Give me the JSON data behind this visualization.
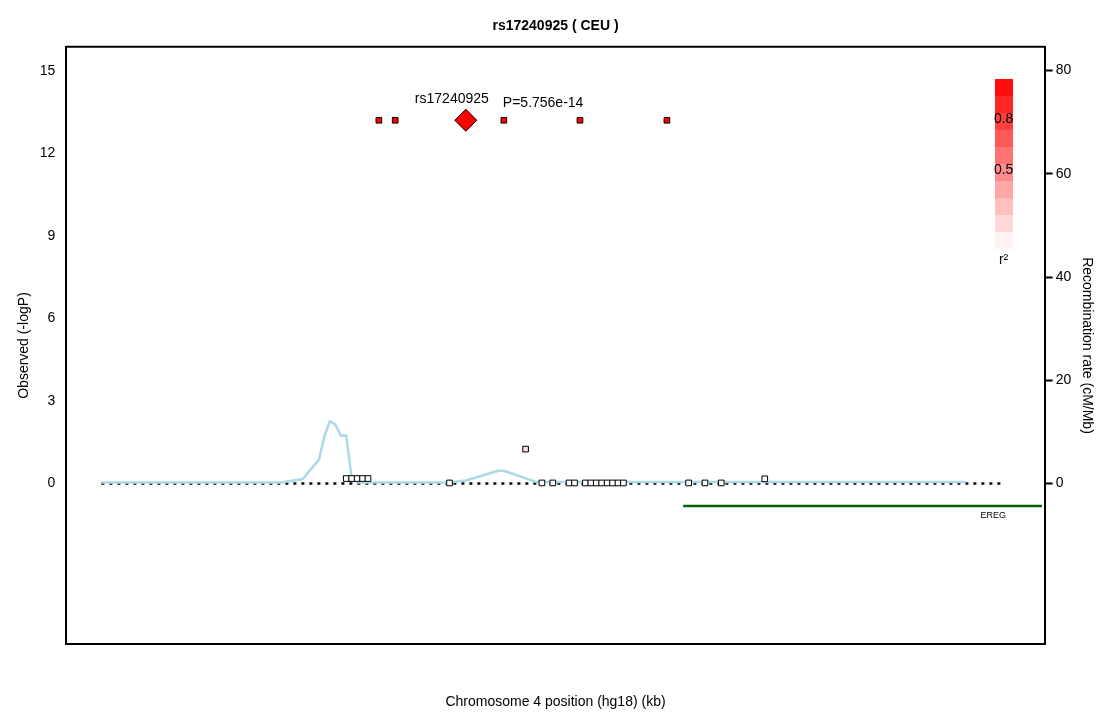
{
  "chart_data": {
    "type": "scatter",
    "title": "rs17240925 ( CEU )",
    "xlabel": "Chromosome 4 position (hg18) (kb)",
    "ylabel": "Observed (-logP)",
    "y2label": "Recombination rate (cM/Mb)",
    "categories": [
      null,
      null,
      null,
      null,
      null,
      null,
      null,
      null,
      null,
      null,
      null,
      null,
      null,
      null,
      null,
      null,
      null,
      null,
      null,
      null,
      null,
      null,
      null,
      null,
      null,
      null,
      null,
      null,
      null,
      null,
      null,
      null,
      null,
      null,
      null,
      null,
      null,
      null,
      null,
      null,
      null,
      null,
      null,
      null,
      null,
      null,
      null,
      null,
      null,
      null,
      null,
      null,
      null,
      null,
      null,
      null,
      null,
      null,
      null,
      null,
      null,
      null,
      null,
      null,
      null,
      null,
      null,
      null,
      null,
      null,
      null,
      null,
      null,
      null,
      null,
      null,
      null,
      null,
      null,
      null,
      null,
      null,
      null,
      null,
      null,
      null,
      null,
      null,
      null,
      null,
      null,
      null,
      null,
      null,
      null,
      null,
      null,
      null,
      null,
      null,
      null,
      null,
      null,
      null,
      null,
      null,
      null,
      null,
      null,
      null,
      null,
      null,
      null,
      null,
      null,
      null,
      null,
      null,
      null,
      null,
      null,
      null,
      null,
      null,
      null,
      null,
      null,
      null,
      null,
      null,
      null,
      null,
      null,
      null,
      null,
      null,
      null,
      null,
      null,
      null,
      null,
      null,
      null,
      null,
      null,
      null,
      null,
      null,
      null,
      null,
      null,
      null,
      null,
      null,
      null,
      null,
      null,
      null,
      null,
      null,
      null,
      null,
      null,
      null,
      null,
      null,
      null,
      null,
      null,
      null,
      null,
      null,
      null,
      null,
      null,
      null,
      null,
      null,
      null,
      null
    ],
    "ylim": [
      -5.84,
      15.87
    ],
    "yticks": [
      0,
      3,
      6,
      9,
      12,
      15
    ],
    "y2lim": [
      -31.1,
      84.6
    ],
    "y2ticks": [
      0,
      20,
      40,
      60,
      80
    ],
    "legend": false,
    "ref_lines": [
      {
        "axis": "y",
        "value": 0,
        "color": "#000000",
        "line_style": "dotted"
      }
    ],
    "annotations": [
      "P=5.756e-14",
      "0.8",
      "0.5",
      "r²"
    ],
    "series": [
      {
        "type": "scatter",
        "marker": "square",
        "values": [
          null,
          null,
          null,
          null,
          null,
          null,
          null,
          null,
          null,
          null,
          null,
          null,
          null,
          null,
          null,
          null,
          null,
          null,
          null,
          null,
          null,
          null,
          null,
          null,
          null,
          null,
          null,
          null,
          null,
          null,
          null,
          null,
          null,
          null,
          null,
          null,
          null,
          null,
          null,
          null,
          null,
          null,
          null,
          null,
          null,
          null,
          null,
          null,
          null,
          null,
          null,
          0.18,
          0.18,
          0.18,
          0.18,
          0.18,
          null,
          13.2,
          null,
          null,
          13.2,
          null,
          null,
          null,
          null,
          null,
          null,
          null,
          null,
          null,
          0.02,
          null,
          null,
          null,
          null,
          null,
          null,
          null,
          null,
          null,
          13.2,
          null,
          null,
          null,
          1.25,
          null,
          null,
          0.02,
          null,
          0.02,
          null,
          null,
          0.02,
          0.02,
          13.2,
          0.02,
          0.02,
          0.02,
          0.02,
          0.02,
          0.02,
          0.02,
          0.02,
          null,
          null,
          null,
          null,
          null,
          null,
          null,
          13.2,
          null,
          null,
          null,
          0.02,
          null,
          null,
          0.02,
          null,
          null,
          0.02,
          null,
          null,
          null,
          null,
          null,
          null,
          null,
          0.17,
          null,
          null,
          null,
          null,
          null,
          null,
          null,
          null,
          null,
          null,
          null,
          null,
          null,
          null,
          null,
          null,
          null,
          null,
          null,
          null,
          null,
          null,
          null,
          null,
          null,
          null,
          null,
          null,
          null,
          null,
          null,
          null,
          null,
          null,
          null,
          null,
          null,
          null,
          null,
          null,
          null,
          null,
          null,
          null,
          null,
          null,
          null,
          null,
          null,
          null,
          null
        ],
        "colors": [
          null,
          null,
          null,
          null,
          null,
          null,
          null,
          null,
          null,
          null,
          null,
          null,
          null,
          null,
          null,
          null,
          null,
          null,
          null,
          null,
          null,
          null,
          null,
          null,
          null,
          null,
          null,
          null,
          null,
          null,
          null,
          null,
          null,
          null,
          null,
          null,
          null,
          null,
          null,
          null,
          null,
          null,
          null,
          null,
          null,
          null,
          null,
          null,
          null,
          null,
          null,
          "#ffffff",
          "#ffffff",
          "#ffffff",
          "#ffffff",
          "#ffffff",
          null,
          "#ff0000",
          null,
          null,
          "#ff0000",
          null,
          null,
          null,
          null,
          null,
          null,
          null,
          null,
          null,
          "#ffffff",
          null,
          null,
          null,
          null,
          null,
          null,
          null,
          null,
          null,
          "#ff0000",
          null,
          null,
          null,
          "#ffd9d9",
          null,
          null,
          "#ffffff",
          null,
          "#ffffff",
          null,
          null,
          "#ffffff",
          "#ffffff",
          "#ff0000",
          "#ffffff",
          "#ffffff",
          "#ffffff",
          "#ffffff",
          "#ffffff",
          "#ffffff",
          "#ffffff",
          "#ffffff",
          null,
          null,
          null,
          null,
          null,
          null,
          null,
          "#ff0000",
          null,
          null,
          null,
          "#ffffff",
          null,
          null,
          "#ffffff",
          null,
          null,
          "#ffffff",
          null,
          null,
          null,
          null,
          null,
          null,
          null,
          "#ffffff",
          null,
          null,
          null,
          null,
          null,
          null,
          null,
          null,
          null,
          null,
          null,
          null,
          null,
          null,
          null,
          null,
          null,
          null,
          null,
          null,
          null,
          null,
          null,
          null,
          null,
          null,
          null,
          null,
          null,
          null,
          null,
          null,
          null,
          null,
          null,
          null,
          null,
          null,
          null,
          null,
          null,
          null,
          null,
          null,
          null,
          null,
          null,
          null,
          null,
          null,
          null
        ]
      },
      {
        "type": "scatter",
        "marker": "diamond",
        "name": "rs17240925",
        "color": "#ff0000",
        "values": [
          null,
          null,
          null,
          null,
          null,
          null,
          null,
          null,
          null,
          null,
          null,
          null,
          null,
          null,
          null,
          null,
          null,
          null,
          null,
          null,
          null,
          null,
          null,
          null,
          null,
          null,
          null,
          null,
          null,
          null,
          null,
          null,
          null,
          null,
          null,
          null,
          null,
          null,
          null,
          null,
          null,
          null,
          null,
          null,
          null,
          null,
          null,
          null,
          null,
          null,
          null,
          null,
          null,
          null,
          null,
          null,
          null,
          null,
          null,
          null,
          null,
          null,
          null,
          null,
          null,
          null,
          null,
          null,
          null,
          null,
          null,
          null,
          null,
          13.2,
          null,
          null,
          null,
          null,
          null,
          null,
          null,
          null,
          null,
          null,
          null,
          null,
          null,
          null,
          null,
          null,
          null,
          null,
          null,
          null,
          null,
          null,
          null,
          null,
          null,
          null,
          null,
          null,
          null,
          null,
          null,
          null,
          null,
          null,
          null,
          null,
          null,
          null,
          null,
          null,
          null,
          null,
          null,
          null,
          null,
          null,
          null,
          null,
          null,
          null,
          null,
          null,
          null,
          null,
          null,
          null,
          null,
          null,
          null,
          null,
          null,
          null,
          null,
          null,
          null,
          null,
          null,
          null,
          null,
          null,
          null,
          null,
          null,
          null,
          null,
          null,
          null,
          null,
          null,
          null,
          null,
          null,
          null,
          null,
          null,
          null,
          null,
          null,
          null,
          null,
          null,
          null,
          null,
          null,
          null,
          null,
          null,
          null,
          null,
          null,
          null,
          null,
          null,
          null,
          null,
          null
        ]
      },
      {
        "type": "line",
        "axis": "y2",
        "color": "#add8e6",
        "values": [
          null,
          null,
          null,
          null,
          null,
          null,
          0.2,
          null,
          null,
          null,
          null,
          null,
          null,
          null,
          null,
          null,
          null,
          null,
          null,
          null,
          null,
          null,
          null,
          null,
          null,
          null,
          null,
          null,
          null,
          null,
          null,
          null,
          null,
          null,
          null,
          null,
          null,
          null,
          null,
          0.2,
          null,
          null,
          null,
          0.9,
          null,
          null,
          4.7,
          9.3,
          12.1,
          11.4,
          9.3,
          9.3,
          1,
          0.2,
          null,
          null,
          null,
          null,
          null,
          null,
          null,
          null,
          null,
          null,
          null,
          null,
          null,
          null,
          null,
          null,
          0.2,
          null,
          null,
          0.6,
          null,
          null,
          null,
          null,
          null,
          2.5,
          2.5,
          null,
          null,
          null,
          null,
          null,
          0.3,
          null,
          null,
          null,
          null,
          null,
          null,
          null,
          null,
          null,
          null,
          null,
          null,
          null,
          null,
          null,
          null,
          null,
          null,
          null,
          null,
          null,
          null,
          null,
          null,
          null,
          null,
          null,
          null,
          null,
          null,
          null,
          null,
          null,
          null,
          null,
          null,
          null,
          null,
          null,
          null,
          null,
          null,
          null,
          null,
          null,
          null,
          null,
          null,
          null,
          null,
          null,
          null,
          null,
          null,
          null,
          null,
          null,
          null,
          null,
          null,
          null,
          null,
          null,
          null,
          null,
          null,
          null,
          null,
          null,
          null,
          null,
          null,
          null,
          null,
          null,
          null,
          null,
          null,
          0.3,
          null,
          null,
          null,
          null,
          null,
          null,
          null,
          null,
          null,
          null,
          null,
          null,
          null,
          null
        ]
      },
      {
        "type": "line",
        "name": "EREG",
        "color": "#006400",
        "values": [
          null,
          null,
          null,
          null,
          null,
          null,
          null,
          null,
          null,
          null,
          null,
          null,
          null,
          null,
          null,
          null,
          null,
          null,
          null,
          null,
          null,
          null,
          null,
          null,
          null,
          null,
          null,
          null,
          null,
          null,
          null,
          null,
          null,
          null,
          null,
          null,
          null,
          null,
          null,
          null,
          null,
          null,
          null,
          null,
          null,
          null,
          null,
          null,
          null,
          null,
          null,
          null,
          null,
          null,
          null,
          null,
          null,
          null,
          null,
          null,
          null,
          null,
          null,
          null,
          null,
          null,
          null,
          null,
          null,
          null,
          null,
          null,
          null,
          null,
          null,
          null,
          null,
          null,
          null,
          null,
          null,
          null,
          null,
          null,
          null,
          null,
          null,
          null,
          null,
          null,
          null,
          null,
          null,
          null,
          null,
          null,
          null,
          null,
          null,
          null,
          null,
          null,
          null,
          null,
          null,
          null,
          null,
          null,
          null,
          null,
          null,
          null,
          null,
          -0.82,
          null,
          null,
          null,
          null,
          null,
          null,
          null,
          null,
          null,
          null,
          null,
          null,
          null,
          null,
          null,
          null,
          null,
          null,
          null,
          null,
          null,
          null,
          null,
          null,
          null,
          null,
          null,
          null,
          null,
          null,
          null,
          null,
          null,
          null,
          null,
          null,
          null,
          null,
          null,
          null,
          null,
          null,
          null,
          null,
          null,
          null,
          null,
          null,
          null,
          null,
          null,
          null,
          null,
          null,
          null,
          null,
          null,
          null,
          null,
          null,
          null,
          null,
          null,
          null,
          null,
          -0.82
        ]
      }
    ]
  }
}
